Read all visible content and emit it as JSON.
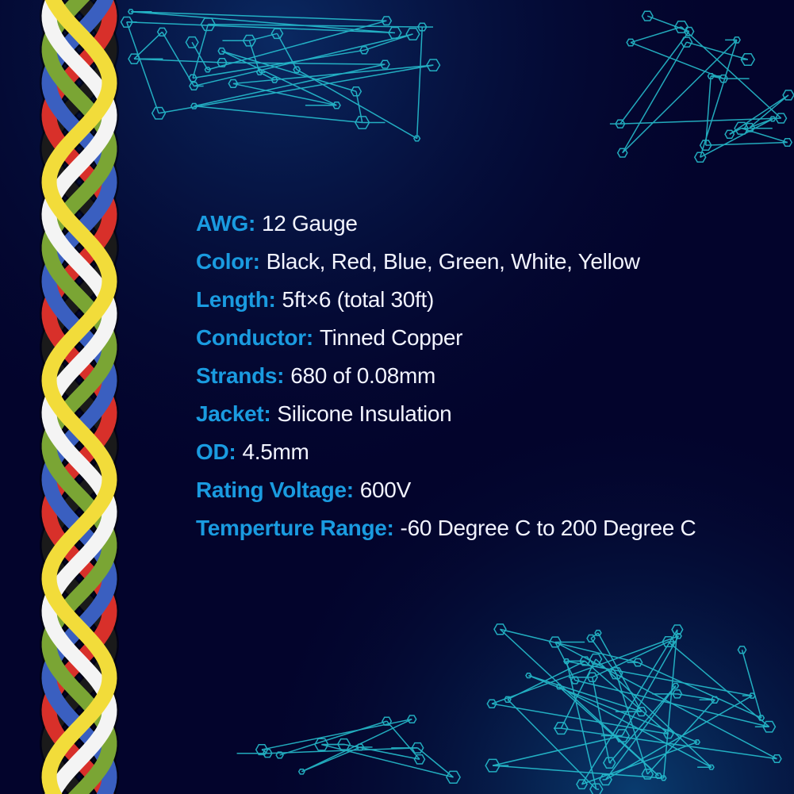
{
  "colors": {
    "background": "#03042c",
    "label": "#1a9be0",
    "value": "#f2f4ff",
    "circuit": "#2ad4e0"
  },
  "wire_colors": [
    "#1a1a1a",
    "#d8302a",
    "#3a5fc0",
    "#7aa534",
    "#f4f4f4",
    "#f2dc3a"
  ],
  "specs": [
    {
      "label": "AWG:",
      "value": "12 Gauge"
    },
    {
      "label": "Color:",
      "value": "Black, Red, Blue, Green, White, Yellow"
    },
    {
      "label": "Length:",
      "value": "5ft×6 (total 30ft)"
    },
    {
      "label": "Conductor:",
      "value": "Tinned Copper"
    },
    {
      "label": "Strands:",
      "value": "680 of 0.08mm"
    },
    {
      "label": "Jacket:",
      "value": "Silicone Insulation"
    },
    {
      "label": "OD:",
      "value": "4.5mm"
    },
    {
      "label": "Rating Voltage:",
      "value": "600V"
    },
    {
      "label": "Temperture Range:",
      "value": "-60 Degree C to 200 Degree C"
    }
  ]
}
